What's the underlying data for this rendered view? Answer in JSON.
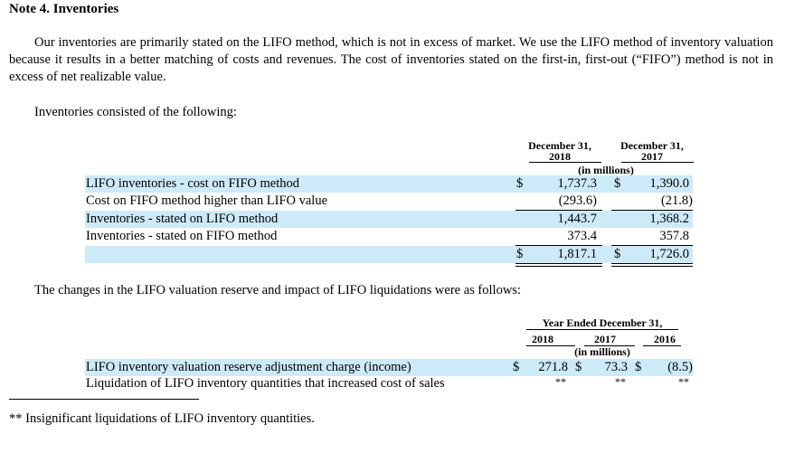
{
  "note_title": "Note 4. Inventories",
  "paragraph": "Our inventories are primarily stated on the LIFO method, which is not in excess of market. We use the LIFO method of inventory valuation because it results in a better matching of costs and revenues. The cost of inventories stated on the first-in, first-out (“FIFO”) method is not in excess of net realizable value.",
  "table1": {
    "intro": "Inventories consisted of the following:",
    "col1_line1": "December 31,",
    "col1_line2": "2018",
    "col2_line1": "December 31,",
    "col2_line2": "2017",
    "unit": "(in millions)",
    "rows": [
      {
        "label": "LIFO inventories - cost on FIFO method",
        "cur1": "$",
        "v1": "1,737.3",
        "cur2": "$",
        "v2": "1,390.0"
      },
      {
        "label": "Cost on FIFO method higher than LIFO value",
        "cur1": "",
        "v1": "(293.6)",
        "cur2": "",
        "v2": "(21.8)"
      },
      {
        "label": "Inventories - stated on LIFO method",
        "cur1": "",
        "v1": "1,443.7",
        "cur2": "",
        "v2": "1,368.2"
      },
      {
        "label": "Inventories - stated on FIFO method",
        "cur1": "",
        "v1": "373.4",
        "cur2": "",
        "v2": "357.8"
      },
      {
        "label": "",
        "cur1": "$",
        "v1": "1,817.1",
        "cur2": "$",
        "v2": "1,726.0"
      }
    ]
  },
  "table2": {
    "intro": "The changes in the LIFO valuation reserve and impact of LIFO liquidations were as follows:",
    "group_header": "Year Ended December 31,",
    "years": [
      "2018",
      "2017",
      "2016"
    ],
    "unit": "(in millions)",
    "rows": [
      {
        "label": "LIFO inventory valuation reserve adjustment charge (income)",
        "cur1": "$",
        "v1": "271.8",
        "cur2": "$",
        "v2": "73.3",
        "cur3": "$",
        "v3": "(8.5)"
      },
      {
        "label": "Liquidation of LIFO inventory quantities that increased cost of sales",
        "v1": "**",
        "v2": "**",
        "v3": "**"
      }
    ]
  },
  "footnote": "** Insignificant liquidations of LIFO inventory quantities."
}
